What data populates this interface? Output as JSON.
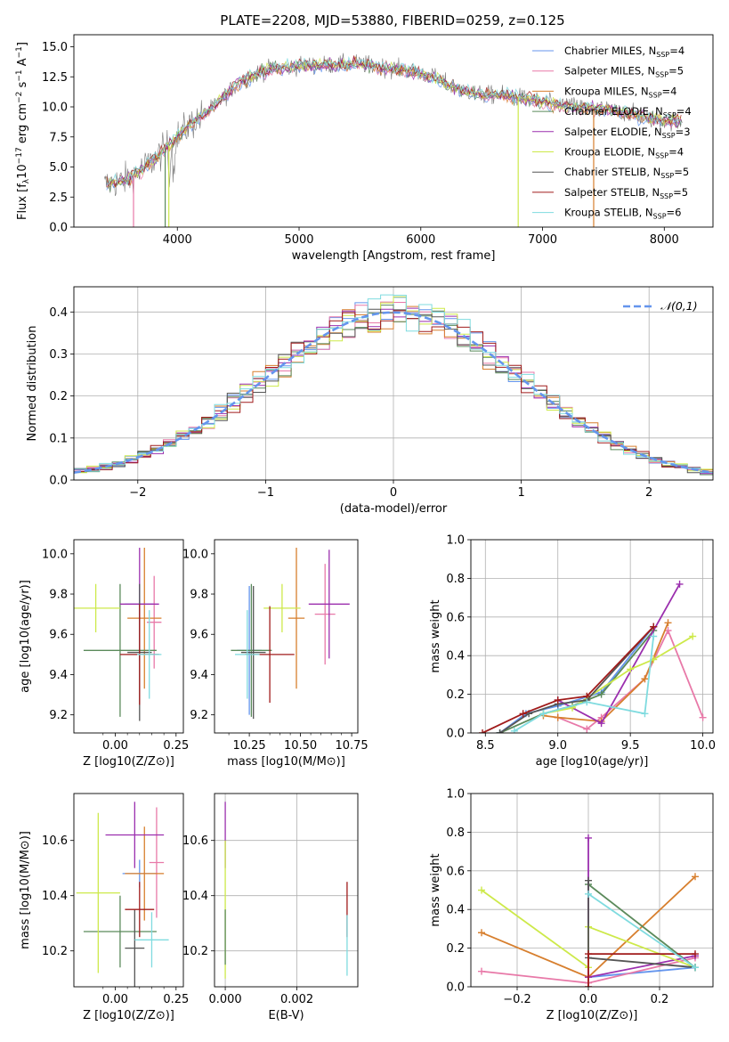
{
  "title": "PLATE=2208, MJD=53880, FIBERID=0259, z=0.125",
  "series_colors": [
    "#6495ED",
    "#E879A8",
    "#D77F2E",
    "#5B8A5B",
    "#9B2FAE",
    "#CDE94A",
    "#555555",
    "#A01B1B",
    "#7FDBDF"
  ],
  "chart_data": [
    {
      "id": "spectrum",
      "type": "line",
      "title": "PLATE=2208, MJD=53880, FIBERID=0259, z=0.125",
      "xlabel": "wavelength [Angstrom, rest frame]",
      "ylabel": "Flux [f_λ 10^-17 erg cm^-2 s^-1 A^-1]",
      "xlim": [
        3150,
        8400
      ],
      "ylim": [
        0,
        16
      ],
      "xticks": [
        4000,
        5000,
        6000,
        7000,
        8000
      ],
      "yticks": [
        0.0,
        2.5,
        5.0,
        7.5,
        10.0,
        12.5,
        15.0
      ],
      "legend": "top-right",
      "continuum": [
        [
          3400,
          3.5
        ],
        [
          3600,
          4.0
        ],
        [
          3800,
          5.5
        ],
        [
          3950,
          7.0
        ],
        [
          4100,
          8.5
        ],
        [
          4300,
          10.0
        ],
        [
          4500,
          12.0
        ],
        [
          4700,
          13.0
        ],
        [
          4900,
          13.3
        ],
        [
          5100,
          13.5
        ],
        [
          5300,
          13.5
        ],
        [
          5500,
          13.6
        ],
        [
          5700,
          13.3
        ],
        [
          5900,
          13.0
        ],
        [
          6100,
          12.5
        ],
        [
          6300,
          11.5
        ],
        [
          6500,
          11.0
        ],
        [
          6700,
          11.0
        ],
        [
          6900,
          10.6
        ],
        [
          7100,
          10.2
        ],
        [
          7300,
          10.0
        ],
        [
          7500,
          9.8
        ],
        [
          7700,
          9.5
        ],
        [
          7900,
          9.0
        ],
        [
          8100,
          8.8
        ]
      ],
      "series": [
        {
          "name": "Chabrier MILES, N_SSP=4"
        },
        {
          "name": "Salpeter MILES, N_SSP=5"
        },
        {
          "name": "Kroupa MILES, N_SSP=4"
        },
        {
          "name": "Chabrier ELODIE, N_SSP=4"
        },
        {
          "name": "Salpeter ELODIE, N_SSP=3"
        },
        {
          "name": "Kroupa ELODIE, N_SSP=4"
        },
        {
          "name": "Chabrier STELIB, N_SSP=5"
        },
        {
          "name": "Salpeter STELIB, N_SSP=5"
        },
        {
          "name": "Kroupa STELIB, N_SSP=6"
        }
      ]
    },
    {
      "id": "residuals",
      "type": "histogram",
      "xlabel": "(data-model)/error",
      "ylabel": "Normed distribution",
      "xlim": [
        -2.5,
        2.5
      ],
      "ylim": [
        0,
        0.46
      ],
      "xticks": [
        -2,
        -1,
        0,
        1,
        2
      ],
      "yticks": [
        0.0,
        0.1,
        0.2,
        0.3,
        0.4
      ],
      "grid": true,
      "legend": "top-right",
      "reference_curve": {
        "name": "𝒩(0,1)",
        "mean": 0,
        "sigma": 1
      },
      "bin_width": 0.1
    },
    {
      "id": "age_vs_Z",
      "type": "errorbar",
      "xlabel": "Z [log10(Z/Z⊙)]",
      "ylabel": "age [log10(age/yr)]",
      "xlim": [
        -0.17,
        0.28
      ],
      "ylim": [
        9.11,
        10.07
      ],
      "xticks": [
        0.0,
        0.25
      ],
      "xticks_minor": [
        -0.05,
        0.05,
        0.1,
        0.15,
        0.2
      ],
      "yticks": [
        9.2,
        9.4,
        9.6,
        9.8,
        10.0
      ],
      "points": [
        {
          "x": 0.1,
          "xerr": 0.06,
          "y": 9.75,
          "yerr": 0.1,
          "series": 0
        },
        {
          "x": 0.16,
          "xerr": 0.03,
          "y": 9.66,
          "yerr": 0.23,
          "series": 1
        },
        {
          "x": 0.12,
          "xerr": 0.07,
          "y": 9.68,
          "yerr": 0.35,
          "series": 2
        },
        {
          "x": 0.02,
          "xerr": 0.15,
          "y": 9.52,
          "yerr": 0.33,
          "series": 3
        },
        {
          "x": 0.1,
          "xerr": 0.08,
          "y": 9.75,
          "yerr": 0.28,
          "series": 4
        },
        {
          "x": -0.08,
          "xerr": 0.1,
          "y": 9.73,
          "yerr": 0.12,
          "series": 5
        },
        {
          "x": 0.1,
          "xerr": 0.05,
          "y": 9.51,
          "yerr": 0.34,
          "series": 6
        },
        {
          "x": 0.1,
          "xerr": 0.08,
          "y": 9.5,
          "yerr": 0.25,
          "series": 7
        },
        {
          "x": 0.14,
          "xerr": 0.05,
          "y": 9.5,
          "yerr": 0.22,
          "series": 8
        }
      ]
    },
    {
      "id": "age_vs_mass",
      "type": "errorbar",
      "xlabel": "mass [log10(M/M⊙)]",
      "ylabel": "",
      "xlim": [
        10.08,
        10.78
      ],
      "ylim": [
        9.11,
        10.07
      ],
      "xticks": [
        10.25,
        10.5,
        10.75
      ],
      "xticks_minor": [
        10.15,
        10.35,
        10.4,
        10.45,
        10.55,
        10.6,
        10.65,
        10.7
      ],
      "yticks": [
        9.2,
        9.4,
        9.6,
        9.8,
        10.0
      ],
      "points": [
        {
          "x": 10.25,
          "xerr": 0.06,
          "y": 9.52,
          "yerr": 0.32,
          "series": 0
        },
        {
          "x": 10.62,
          "xerr": 0.05,
          "y": 9.7,
          "yerr": 0.25,
          "series": 1
        },
        {
          "x": 10.48,
          "xerr": 0.04,
          "y": 9.68,
          "yerr": 0.35,
          "series": 2
        },
        {
          "x": 10.26,
          "xerr": 0.1,
          "y": 9.52,
          "yerr": 0.33,
          "series": 3
        },
        {
          "x": 10.64,
          "xerr": 0.1,
          "y": 9.75,
          "yerr": 0.27,
          "series": 4
        },
        {
          "x": 10.41,
          "xerr": 0.09,
          "y": 9.73,
          "yerr": 0.12,
          "series": 5
        },
        {
          "x": 10.27,
          "xerr": 0.06,
          "y": 9.51,
          "yerr": 0.33,
          "series": 6
        },
        {
          "x": 10.35,
          "xerr": 0.12,
          "y": 9.5,
          "yerr": 0.24,
          "series": 7
        },
        {
          "x": 10.24,
          "xerr": 0.06,
          "y": 9.5,
          "yerr": 0.22,
          "series": 8
        }
      ]
    },
    {
      "id": "weight_vs_age",
      "type": "line",
      "xlabel": "age [log10(age/yr)]",
      "ylabel": "mass weight",
      "xlim": [
        8.4,
        10.07
      ],
      "ylim": [
        0,
        1.0
      ],
      "xticks": [
        8.5,
        9.0,
        9.5,
        10.0
      ],
      "yticks": [
        0.0,
        0.2,
        0.4,
        0.6,
        0.8,
        1.0
      ],
      "grid": true,
      "series": [
        {
          "points": [
            [
              8.6,
              0
            ],
            [
              8.78,
              0.1
            ],
            [
              9.0,
              0.14
            ],
            [
              9.3,
              0.21
            ],
            [
              9.66,
              0.55
            ]
          ]
        },
        {
          "points": [
            [
              9.0,
              0.08
            ],
            [
              9.2,
              0.02
            ],
            [
              9.3,
              0.08
            ],
            [
              9.6,
              0.28
            ],
            [
              9.76,
              0.53
            ],
            [
              10.0,
              0.08
            ]
          ]
        },
        {
          "points": [
            [
              8.9,
              0.09
            ],
            [
              9.0,
              0.08
            ],
            [
              9.3,
              0.06
            ],
            [
              9.6,
              0.28
            ],
            [
              9.76,
              0.57
            ]
          ]
        },
        {
          "points": [
            [
              8.6,
              0
            ],
            [
              8.9,
              0.1
            ],
            [
              9.1,
              0.14
            ],
            [
              9.3,
              0.2
            ],
            [
              9.66,
              0.53
            ]
          ]
        },
        {
          "points": [
            [
              9.0,
              0.17
            ],
            [
              9.3,
              0.05
            ],
            [
              9.84,
              0.77
            ]
          ]
        },
        {
          "points": [
            [
              8.9,
              0.1
            ],
            [
              9.1,
              0.13
            ],
            [
              9.5,
              0.33
            ],
            [
              9.66,
              0.38
            ],
            [
              9.93,
              0.5
            ]
          ]
        },
        {
          "points": [
            [
              8.6,
              0
            ],
            [
              8.8,
              0.1
            ],
            [
              9.0,
              0.15
            ],
            [
              9.2,
              0.17
            ],
            [
              9.66,
              0.55
            ]
          ]
        },
        {
          "points": [
            [
              8.48,
              0
            ],
            [
              8.76,
              0.1
            ],
            [
              9.0,
              0.17
            ],
            [
              9.2,
              0.19
            ],
            [
              9.66,
              0.55
            ]
          ]
        },
        {
          "points": [
            [
              8.7,
              0.01
            ],
            [
              8.9,
              0.1
            ],
            [
              9.2,
              0.16
            ],
            [
              9.6,
              0.1
            ],
            [
              9.66,
              0.5
            ]
          ]
        }
      ]
    },
    {
      "id": "mass_vs_Z",
      "type": "errorbar",
      "xlabel": "Z [log10(Z/Z⊙)]",
      "ylabel": "mass [log10(M/M⊙)]",
      "xlim": [
        -0.17,
        0.28
      ],
      "ylim": [
        10.07,
        10.77
      ],
      "xticks": [
        0.0,
        0.25
      ],
      "xticks_minor": [
        -0.05,
        0.05,
        0.1,
        0.15,
        0.2
      ],
      "yticks": [
        10.2,
        10.4,
        10.6
      ],
      "points": [
        {
          "x": 0.1,
          "xerr": 0.07,
          "y": 10.48,
          "yerr": 0.05,
          "series": 0
        },
        {
          "x": 0.17,
          "xerr": 0.03,
          "y": 10.52,
          "yerr": 0.2,
          "series": 1
        },
        {
          "x": 0.12,
          "xerr": 0.08,
          "y": 10.48,
          "yerr": 0.17,
          "series": 2
        },
        {
          "x": 0.02,
          "xerr": 0.15,
          "y": 10.27,
          "yerr": 0.13,
          "series": 3
        },
        {
          "x": 0.08,
          "xerr": 0.12,
          "y": 10.62,
          "yerr": 0.12,
          "series": 4
        },
        {
          "x": -0.07,
          "xerr": 0.09,
          "y": 10.41,
          "yerr": 0.29,
          "series": 5
        },
        {
          "x": 0.08,
          "xerr": 0.04,
          "y": 10.21,
          "yerr": 0.14,
          "series": 6
        },
        {
          "x": 0.1,
          "xerr": 0.06,
          "y": 10.35,
          "yerr": 0.1,
          "series": 7
        },
        {
          "x": 0.15,
          "xerr": 0.07,
          "y": 10.24,
          "yerr": 0.1,
          "series": 8
        }
      ]
    },
    {
      "id": "mass_vs_ebv",
      "type": "errorbar",
      "xlabel": "E(B-V)",
      "ylabel": "",
      "xlim": [
        -0.0003,
        0.0037
      ],
      "ylim": [
        10.07,
        10.77
      ],
      "xticks": [
        0.0,
        0.002
      ],
      "yticks": [
        10.2,
        10.4,
        10.6
      ],
      "grid": true,
      "points": [
        {
          "x": 0.0,
          "xerr": 0,
          "y": 10.62,
          "yerr": 0.12,
          "series": 4
        },
        {
          "x": 0.0,
          "xerr": 0,
          "y": 10.35,
          "yerr": 0.25,
          "series": 5
        },
        {
          "x": 0.0,
          "xerr": 0,
          "y": 10.25,
          "yerr": 0.1,
          "series": 3
        },
        {
          "x": 0.0034,
          "xerr": 0,
          "y": 10.35,
          "yerr": 0.1,
          "series": 7
        },
        {
          "x": 0.0034,
          "xerr": 0,
          "y": 10.22,
          "yerr": 0.11,
          "series": 8
        }
      ]
    },
    {
      "id": "weight_vs_Z",
      "type": "line",
      "xlabel": "Z [log10(Z/Z⊙)]",
      "ylabel": "mass weight",
      "xlim": [
        -0.33,
        0.35
      ],
      "ylim": [
        0,
        1.0
      ],
      "xticks": [
        -0.2,
        0.0,
        0.2
      ],
      "yticks": [
        0.0,
        0.2,
        0.4,
        0.6,
        0.8,
        1.0
      ],
      "grid": true,
      "series": [
        {
          "points": [
            [
              0,
              0.05
            ],
            [
              0.3,
              0.1
            ]
          ]
        },
        {
          "points": [
            [
              -0.3,
              0.08
            ],
            [
              0,
              0.02
            ],
            [
              0.3,
              0.15
            ]
          ]
        },
        {
          "points": [
            [
              -0.3,
              0.28
            ],
            [
              0,
              0.05
            ],
            [
              0.3,
              0.57
            ]
          ]
        },
        {
          "points": [
            [
              0,
              0.53
            ],
            [
              0.3,
              0.1
            ]
          ]
        },
        {
          "points": [
            [
              0,
              0.77
            ],
            [
              0,
              0.05
            ],
            [
              0.3,
              0.16
            ]
          ]
        },
        {
          "points": [
            [
              -0.3,
              0.5
            ],
            [
              0,
              0.1
            ],
            [
              0,
              0.31
            ],
            [
              0.3,
              0.1
            ]
          ]
        },
        {
          "points": [
            [
              0,
              0.55
            ],
            [
              0,
              0.15
            ],
            [
              0.3,
              0.1
            ]
          ]
        },
        {
          "points": [
            [
              0,
              0
            ],
            [
              0,
              0.17
            ],
            [
              0.3,
              0.17
            ]
          ]
        },
        {
          "points": [
            [
              0,
              0.48
            ],
            [
              0.3,
              0.1
            ]
          ]
        }
      ]
    }
  ]
}
